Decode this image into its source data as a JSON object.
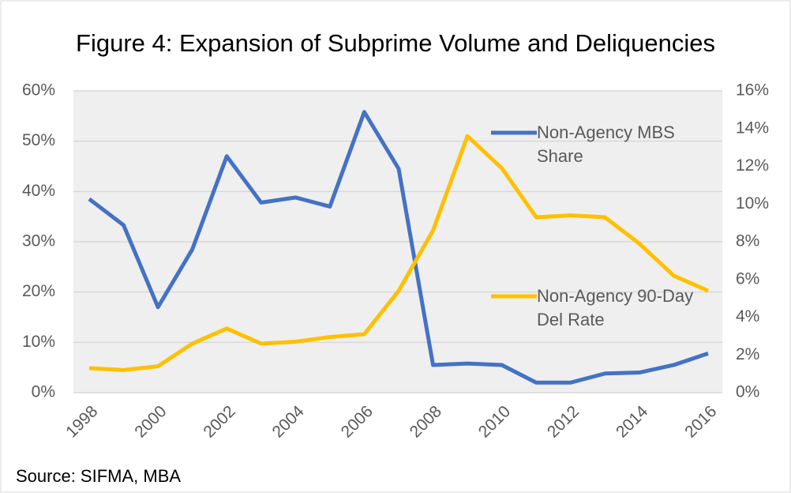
{
  "chart_data": {
    "type": "line",
    "title": "Figure 4: Expansion of Subprime Volume and Deliquencies",
    "source": "Source: SIFMA, MBA",
    "x": [
      1998,
      1999,
      2000,
      2001,
      2002,
      2003,
      2004,
      2005,
      2006,
      2007,
      2008,
      2009,
      2010,
      2011,
      2012,
      2013,
      2014,
      2015,
      2016
    ],
    "xlim": [
      1998,
      2016
    ],
    "xticks": [
      1998,
      2000,
      2002,
      2004,
      2006,
      2008,
      2010,
      2012,
      2014,
      2016
    ],
    "ylim": [
      0,
      60
    ],
    "yticks": [
      {
        "value": 0,
        "label": "0%"
      },
      {
        "value": 10,
        "label": "10%"
      },
      {
        "value": 20,
        "label": "20%"
      },
      {
        "value": 30,
        "label": "30%"
      },
      {
        "value": 40,
        "label": "40%"
      },
      {
        "value": 50,
        "label": "50%"
      },
      {
        "value": 60,
        "label": "60%"
      }
    ],
    "y2lim": [
      0,
      16
    ],
    "y2ticks": [
      {
        "value": 0,
        "label": "0%"
      },
      {
        "value": 2,
        "label": "2%"
      },
      {
        "value": 4,
        "label": "4%"
      },
      {
        "value": 6,
        "label": "6%"
      },
      {
        "value": 8,
        "label": "8%"
      },
      {
        "value": 10,
        "label": "10%"
      },
      {
        "value": 12,
        "label": "12%"
      },
      {
        "value": 14,
        "label": "14%"
      },
      {
        "value": 16,
        "label": "16%"
      }
    ],
    "grid": true,
    "series": [
      {
        "name": "Non-Agency MBS Share",
        "color": "#4472c4",
        "values": [
          38.5,
          33.3,
          17,
          28.5,
          47,
          37.8,
          38.8,
          37,
          55.8,
          44.5,
          5.5,
          5.8,
          5.5,
          2,
          2,
          3.8,
          4,
          5.5,
          7.8
        ]
      },
      {
        "name": "Non-Agency 90-Day Del Rate",
        "color": "#ffc000",
        "axis": "y2",
        "values": [
          1.3,
          1.2,
          1.4,
          2.6,
          3.4,
          2.6,
          2.7,
          2.95,
          3.1,
          5.4,
          8.6,
          13.6,
          11.9,
          9.3,
          9.4,
          9.3,
          7.9,
          6.2,
          5.4
        ]
      }
    ]
  }
}
